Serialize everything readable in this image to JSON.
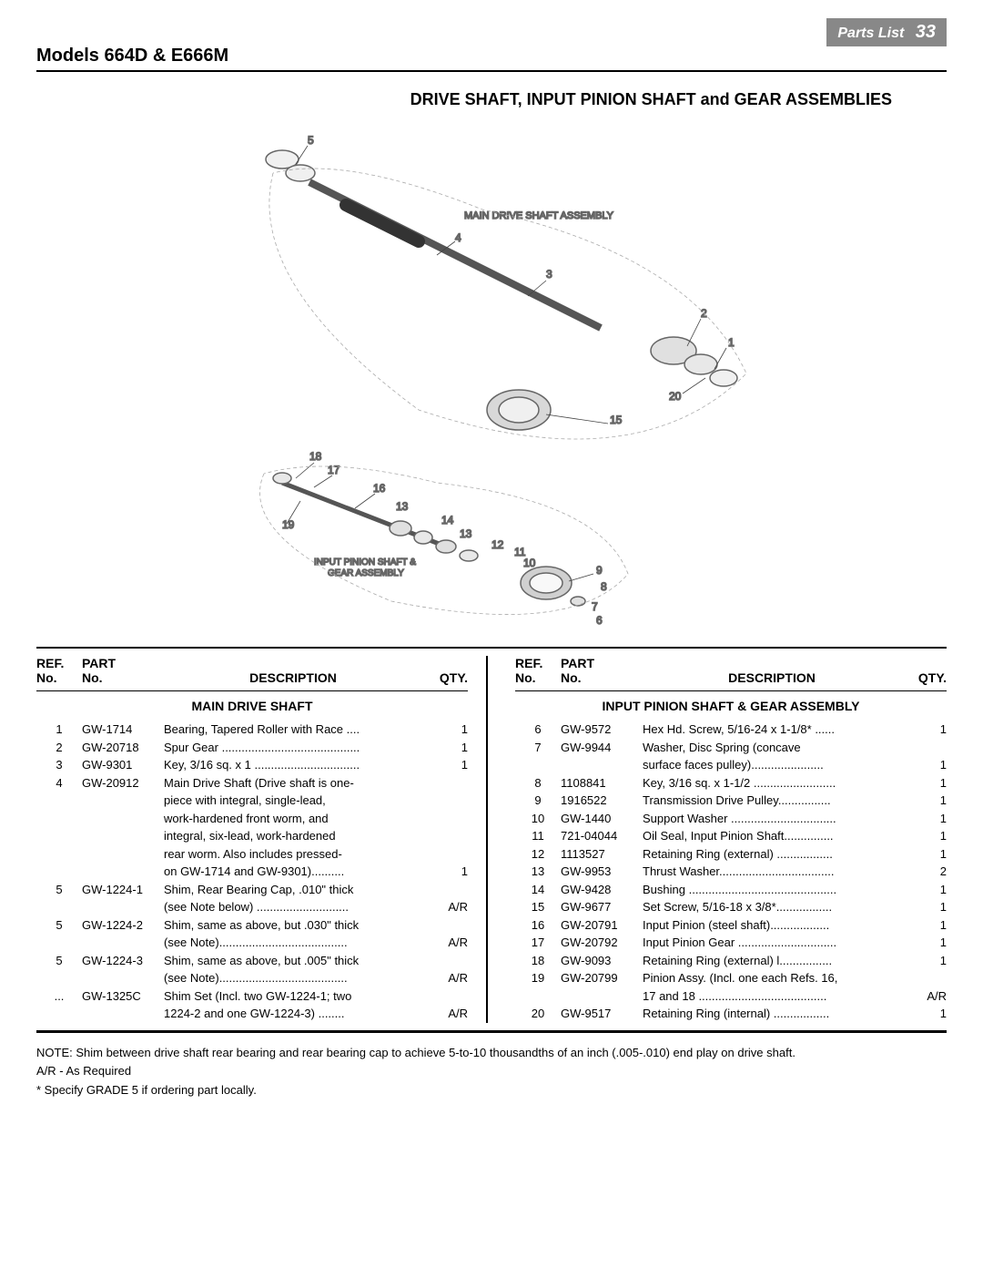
{
  "header": {
    "tab_label": "Parts List",
    "page_number": "33",
    "model_title": "Models 664D & E666M"
  },
  "diagram": {
    "title": "DRIVE SHAFT, INPUT PINION SHAFT and GEAR ASSEMBLIES",
    "label_main": "MAIN DRIVE SHAFT ASSEMBLY",
    "label_input": "INPUT PINION SHAFT & GEAR ASSEMBLY",
    "callouts": [
      "1",
      "2",
      "3",
      "4",
      "5",
      "6",
      "7",
      "8",
      "9",
      "10",
      "11",
      "12",
      "13",
      "14",
      "15",
      "16",
      "17",
      "18",
      "19",
      "20"
    ]
  },
  "table": {
    "headers": {
      "ref": "REF.",
      "ref_sub": "No.",
      "part": "PART",
      "part_sub": "No.",
      "desc": "DESCRIPTION",
      "qty": "QTY."
    },
    "left_section_title": "MAIN DRIVE SHAFT",
    "right_section_title": "INPUT PINION SHAFT & GEAR ASSEMBLY",
    "left_rows": [
      {
        "ref": "1",
        "part": "GW-1714",
        "desc": "Bearing, Tapered Roller with Race ....",
        "qty": "1"
      },
      {
        "ref": "2",
        "part": "GW-20718",
        "desc": "Spur Gear ..........................................",
        "qty": "1"
      },
      {
        "ref": "3",
        "part": "GW-9301",
        "desc": "Key, 3/16 sq. x 1 ................................",
        "qty": "1"
      },
      {
        "ref": "4",
        "part": "GW-20912",
        "desc": "Main Drive Shaft (Drive shaft is one-",
        "qty": ""
      },
      {
        "ref": "",
        "part": "",
        "desc": "piece with integral, single-lead,",
        "qty": ""
      },
      {
        "ref": "",
        "part": "",
        "desc": "work-hardened front worm, and",
        "qty": ""
      },
      {
        "ref": "",
        "part": "",
        "desc": "integral, six-lead, work-hardened",
        "qty": ""
      },
      {
        "ref": "",
        "part": "",
        "desc": "rear worm. Also includes pressed-",
        "qty": ""
      },
      {
        "ref": "",
        "part": "",
        "desc": "on GW-1714 and GW-9301)..........",
        "qty": "1"
      },
      {
        "ref": "5",
        "part": "GW-1224-1",
        "desc": "Shim, Rear Bearing Cap, .010\" thick",
        "qty": ""
      },
      {
        "ref": "",
        "part": "",
        "desc": "(see Note below) ............................",
        "qty": "A/R"
      },
      {
        "ref": "5",
        "part": "GW-1224-2",
        "desc": "Shim, same as above, but .030\" thick",
        "qty": ""
      },
      {
        "ref": "",
        "part": "",
        "desc": "(see Note).......................................",
        "qty": "A/R"
      },
      {
        "ref": "5",
        "part": "GW-1224-3",
        "desc": "Shim, same as above, but .005\" thick",
        "qty": ""
      },
      {
        "ref": "",
        "part": "",
        "desc": "(see Note).......................................",
        "qty": "A/R"
      },
      {
        "ref": "...",
        "part": "GW-1325C",
        "desc": "Shim Set (Incl. two GW-1224-1; two",
        "qty": ""
      },
      {
        "ref": "",
        "part": "",
        "desc": "1224-2 and one GW-1224-3) ........",
        "qty": "A/R"
      }
    ],
    "right_rows": [
      {
        "ref": "6",
        "part": "GW-9572",
        "desc": "Hex Hd. Screw, 5/16-24 x 1-1/8* ......",
        "qty": "1"
      },
      {
        "ref": "7",
        "part": "GW-9944",
        "desc": "Washer, Disc Spring (concave",
        "qty": ""
      },
      {
        "ref": "",
        "part": "",
        "desc": "surface faces pulley)......................",
        "qty": "1"
      },
      {
        "ref": "8",
        "part": "1108841",
        "desc": "Key, 3/16 sq. x 1-1/2 .........................",
        "qty": "1"
      },
      {
        "ref": "9",
        "part": "1916522",
        "desc": "Transmission Drive Pulley................",
        "qty": "1"
      },
      {
        "ref": "10",
        "part": "GW-1440",
        "desc": "Support Washer ................................",
        "qty": "1"
      },
      {
        "ref": "11",
        "part": "721-04044",
        "desc": "Oil Seal, Input Pinion Shaft...............",
        "qty": "1"
      },
      {
        "ref": "12",
        "part": "1113527",
        "desc": "Retaining Ring (external) .................",
        "qty": "1"
      },
      {
        "ref": "13",
        "part": "GW-9953",
        "desc": "Thrust Washer...................................",
        "qty": "2"
      },
      {
        "ref": "14",
        "part": "GW-9428",
        "desc": "Bushing .............................................",
        "qty": "1"
      },
      {
        "ref": "15",
        "part": "GW-9677",
        "desc": "Set Screw, 5/16-18 x 3/8*.................",
        "qty": "1"
      },
      {
        "ref": "16",
        "part": "GW-20791",
        "desc": "Input Pinion (steel shaft)..................",
        "qty": "1"
      },
      {
        "ref": "17",
        "part": "GW-20792",
        "desc": "Input Pinion Gear ..............................",
        "qty": "1"
      },
      {
        "ref": "18",
        "part": "GW-9093",
        "desc": "Retaining Ring (external) l................",
        "qty": "1"
      },
      {
        "ref": "19",
        "part": "GW-20799",
        "desc": "Pinion Assy. (Incl. one each Refs. 16,",
        "qty": ""
      },
      {
        "ref": "",
        "part": "",
        "desc": "17 and 18 .......................................",
        "qty": "A/R"
      },
      {
        "ref": "20",
        "part": "GW-9517",
        "desc": "Retaining Ring  (internal) .................",
        "qty": "1"
      }
    ]
  },
  "footnotes": {
    "note": "NOTE: Shim between drive shaft rear bearing and rear bearing cap to achieve 5-to-10 thousandths of an inch (.005-.010) end play on drive shaft.",
    "ar": "A/R - As Required",
    "grade": "* Specify GRADE 5 if ordering part locally."
  }
}
